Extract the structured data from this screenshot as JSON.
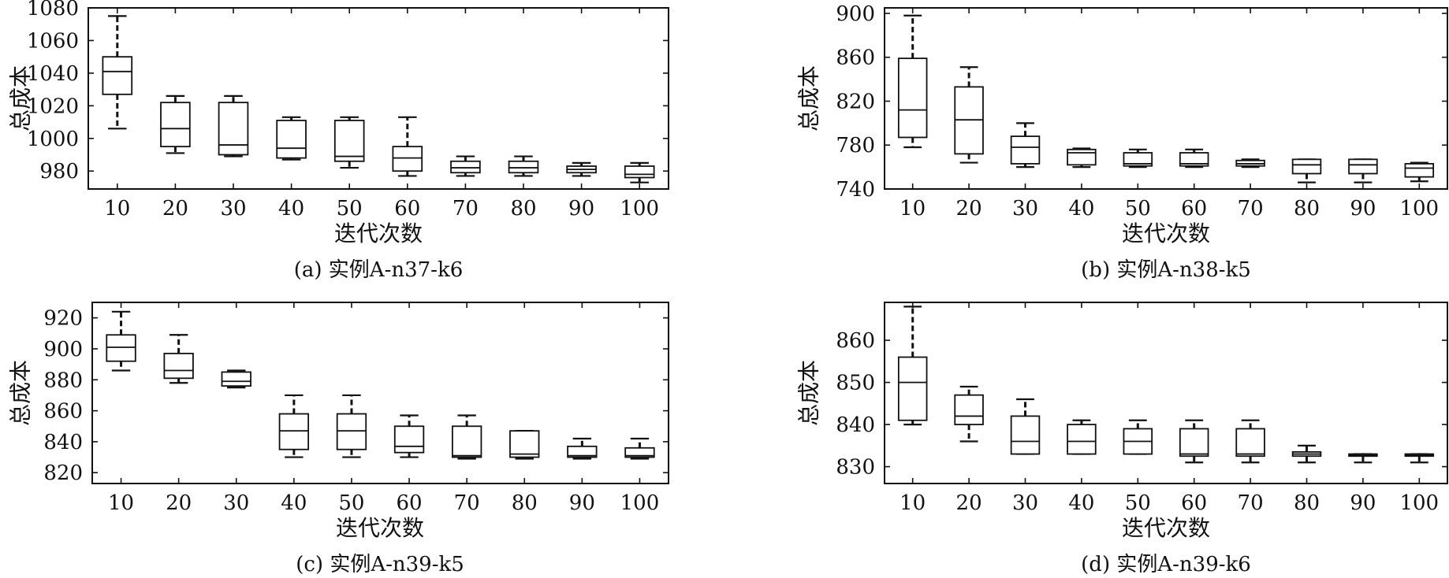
{
  "chart_data": [
    {
      "type": "box",
      "caption": "(a) 实例A-n37-k6",
      "xlabel": "迭代次数",
      "ylabel": "总成本",
      "categories": [
        "10",
        "20",
        "30",
        "40",
        "50",
        "60",
        "70",
        "80",
        "90",
        "100"
      ],
      "ylim": [
        969,
        1080
      ],
      "yticks": [
        980,
        1000,
        1020,
        1040,
        1060,
        1080
      ],
      "boxes": [
        {
          "min": 1006,
          "q1": 1027,
          "median": 1041,
          "q3": 1050,
          "max": 1075
        },
        {
          "min": 991,
          "q1": 995,
          "median": 1006,
          "q3": 1022,
          "max": 1026
        },
        {
          "min": 989,
          "q1": 990,
          "median": 996,
          "q3": 1022,
          "max": 1026
        },
        {
          "min": 987,
          "q1": 988,
          "median": 994,
          "q3": 1011,
          "max": 1013
        },
        {
          "min": 982,
          "q1": 986,
          "median": 989,
          "q3": 1011,
          "max": 1013
        },
        {
          "min": 977,
          "q1": 980,
          "median": 988,
          "q3": 995,
          "max": 1013
        },
        {
          "min": 977,
          "q1": 979,
          "median": 982,
          "q3": 986,
          "max": 989
        },
        {
          "min": 977,
          "q1": 979,
          "median": 982,
          "q3": 986,
          "max": 989
        },
        {
          "min": 977,
          "q1": 979,
          "median": 981,
          "q3": 983,
          "max": 985
        },
        {
          "min": 973,
          "q1": 976,
          "median": 978,
          "q3": 983,
          "max": 985
        }
      ]
    },
    {
      "type": "box",
      "caption": "(b) 实例A-n38-k5",
      "xlabel": "迭代次数",
      "ylabel": "总成本",
      "categories": [
        "10",
        "20",
        "30",
        "40",
        "50",
        "60",
        "70",
        "80",
        "90",
        "100"
      ],
      "ylim": [
        740,
        905
      ],
      "yticks": [
        740,
        780,
        820,
        860,
        900
      ],
      "boxes": [
        {
          "min": 778,
          "q1": 787,
          "median": 812,
          "q3": 859,
          "max": 898
        },
        {
          "min": 764,
          "q1": 772,
          "median": 803,
          "q3": 833,
          "max": 851
        },
        {
          "min": 760,
          "q1": 763,
          "median": 778,
          "q3": 788,
          "max": 800
        },
        {
          "min": 760,
          "q1": 762,
          "median": 773,
          "q3": 776,
          "max": 777
        },
        {
          "min": 760,
          "q1": 761,
          "median": 763,
          "q3": 773,
          "max": 776
        },
        {
          "min": 760,
          "q1": 761,
          "median": 763,
          "q3": 773,
          "max": 776
        },
        {
          "min": 760,
          "q1": 761,
          "median": 763,
          "q3": 766,
          "max": 767
        },
        {
          "min": 746,
          "q1": 754,
          "median": 762,
          "q3": 767,
          "max": 767
        },
        {
          "min": 746,
          "q1": 754,
          "median": 762,
          "q3": 767,
          "max": 767
        },
        {
          "min": 747,
          "q1": 751,
          "median": 759,
          "q3": 763,
          "max": 764
        }
      ]
    },
    {
      "type": "box",
      "caption": "(c) 实例A-n39-k5",
      "xlabel": "迭代次数",
      "ylabel": "总成本",
      "categories": [
        "10",
        "20",
        "30",
        "40",
        "50",
        "60",
        "70",
        "80",
        "90",
        "100"
      ],
      "ylim": [
        813,
        930
      ],
      "yticks": [
        820,
        840,
        860,
        880,
        900,
        920
      ],
      "boxes": [
        {
          "min": 886,
          "q1": 892,
          "median": 901,
          "q3": 909,
          "max": 924
        },
        {
          "min": 878,
          "q1": 881,
          "median": 886,
          "q3": 897,
          "max": 909
        },
        {
          "min": 875,
          "q1": 876,
          "median": 879,
          "q3": 885,
          "max": 886
        },
        {
          "min": 830,
          "q1": 835,
          "median": 847,
          "q3": 858,
          "max": 870
        },
        {
          "min": 830,
          "q1": 835,
          "median": 847,
          "q3": 858,
          "max": 870
        },
        {
          "min": 830,
          "q1": 833,
          "median": 837,
          "q3": 850,
          "max": 857
        },
        {
          "min": 829,
          "q1": 830,
          "median": 831,
          "q3": 850,
          "max": 857
        },
        {
          "min": 829,
          "q1": 830,
          "median": 832,
          "q3": 847,
          "max": 847
        },
        {
          "min": 829,
          "q1": 830,
          "median": 831,
          "q3": 837,
          "max": 842
        },
        {
          "min": 829,
          "q1": 830,
          "median": 831,
          "q3": 836,
          "max": 842
        }
      ]
    },
    {
      "type": "box",
      "caption": "(d) 实例A-n39-k6",
      "xlabel": "迭代次数",
      "ylabel": "总成本",
      "categories": [
        "10",
        "20",
        "30",
        "40",
        "50",
        "60",
        "70",
        "80",
        "90",
        "100"
      ],
      "ylim": [
        826,
        869
      ],
      "yticks": [
        830,
        840,
        850,
        860
      ],
      "boxes": [
        {
          "min": 840,
          "q1": 841,
          "median": 850,
          "q3": 856,
          "max": 868
        },
        {
          "min": 836,
          "q1": 840,
          "median": 842,
          "q3": 847,
          "max": 849
        },
        {
          "min": 833,
          "q1": 833,
          "median": 836,
          "q3": 842,
          "max": 846
        },
        {
          "min": 833,
          "q1": 833,
          "median": 836,
          "q3": 840,
          "max": 841
        },
        {
          "min": 833,
          "q1": 833,
          "median": 836,
          "q3": 839,
          "max": 841
        },
        {
          "min": 831,
          "q1": 832.5,
          "median": 833,
          "q3": 839,
          "max": 841
        },
        {
          "min": 831,
          "q1": 832.5,
          "median": 833,
          "q3": 839,
          "max": 841
        },
        {
          "min": 831,
          "q1": 832.5,
          "median": 833,
          "q3": 833.5,
          "max": 835
        },
        {
          "min": 831,
          "q1": 832.5,
          "median": 832.7,
          "q3": 833,
          "max": 833
        },
        {
          "min": 831,
          "q1": 832.5,
          "median": 832.7,
          "q3": 833,
          "max": 833
        }
      ]
    }
  ]
}
